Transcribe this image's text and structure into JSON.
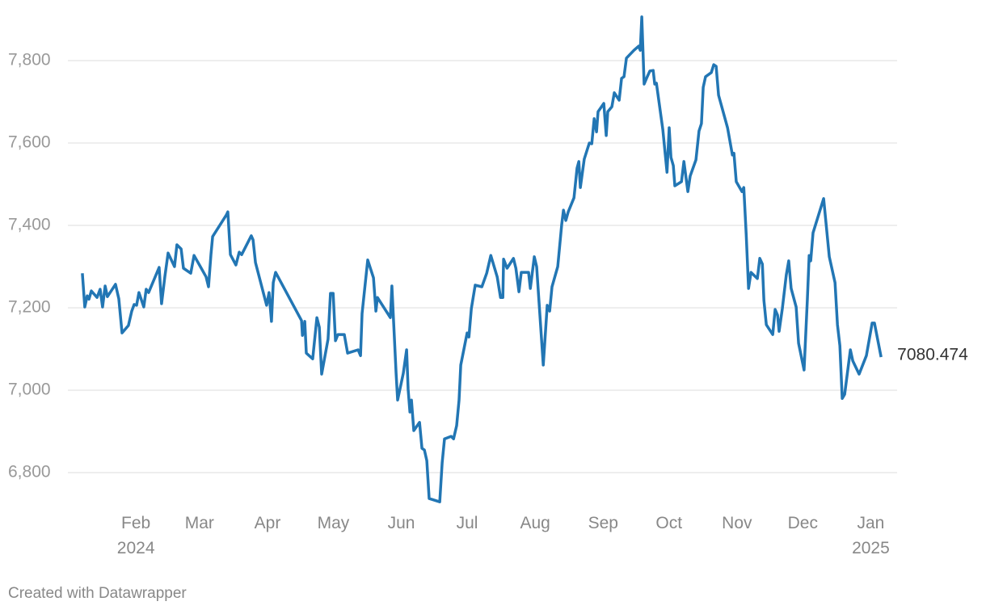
{
  "chart_data": {
    "type": "line",
    "credit": "Created with Datawrapper",
    "xlim": [
      0,
      378
    ],
    "ylim": [
      6720,
      7920
    ],
    "grid": true,
    "xticks": [
      {
        "value": 31,
        "label": "Feb\n2024"
      },
      {
        "value": 60,
        "label": "Mar"
      },
      {
        "value": 91,
        "label": "Apr"
      },
      {
        "value": 121,
        "label": "May"
      },
      {
        "value": 152,
        "label": "Jun"
      },
      {
        "value": 182,
        "label": "Jul"
      },
      {
        "value": 213,
        "label": "Aug"
      },
      {
        "value": 244,
        "label": "Sep"
      },
      {
        "value": 274,
        "label": "Oct"
      },
      {
        "value": 305,
        "label": "Nov"
      },
      {
        "value": 335,
        "label": "Dec"
      },
      {
        "value": 366,
        "label": "Jan\n2025"
      }
    ],
    "yticks": [
      {
        "value": 6800,
        "label": "6,800"
      },
      {
        "value": 7000,
        "label": "7,000"
      },
      {
        "value": 7200,
        "label": "7,200"
      },
      {
        "value": 7400,
        "label": "7,400"
      },
      {
        "value": 7600,
        "label": "7,600"
      },
      {
        "value": 7800,
        "label": "7,800"
      }
    ],
    "color": "#2276b4",
    "x": [
      6.6,
      7.7,
      8.8,
      9.6,
      10.7,
      13.3,
      14.7,
      15.8,
      17,
      18,
      21.7,
      23.2,
      24.7,
      27.6,
      29.1,
      30.2,
      31.3,
      32.4,
      34.6,
      35.7,
      36.8,
      41.6,
      42.7,
      44.2,
      45.7,
      48.6,
      49.7,
      51.6,
      52.7,
      56,
      57.5,
      60.4,
      63,
      64.1,
      65.2,
      66,
      72.2,
      72.9,
      74.1,
      76.6,
      78.1,
      79.2,
      83.6,
      84.4,
      85.5,
      90.6,
      91.7,
      92.8,
      93.6,
      94.7,
      106.5,
      106.9,
      108,
      108.7,
      111.6,
      113.5,
      114.6,
      115.7,
      118.6,
      119.7,
      120.9,
      122,
      123.1,
      126,
      127.5,
      132.3,
      133.4,
      134.1,
      136.7,
      139.3,
      140.4,
      141.1,
      147,
      147.7,
      148.5,
      149.6,
      150.3,
      152.9,
      154.4,
      155.1,
      155.9,
      156.6,
      157.7,
      160.3,
      161.4,
      162.5,
      163.6,
      164.7,
      169.5,
      170.6,
      171.7,
      174.7,
      175.8,
      177.2,
      178.3,
      179.1,
      182,
      182.8,
      183.9,
      185.7,
      188.7,
      190.9,
      192.8,
      195.7,
      197.2,
      198.3,
      198.6,
      200.2,
      203.1,
      204.2,
      205.6,
      206.7,
      210,
      210.8,
      212.6,
      213.7,
      216.7,
      218.5,
      219.6,
      220.7,
      223.3,
      225.1,
      225.9,
      227,
      228.1,
      230.7,
      232.1,
      232.9,
      233.6,
      235.4,
      237.7,
      238.8,
      239.9,
      241,
      241.7,
      244.3,
      245.4,
      246.1,
      248,
      249.1,
      251.3,
      252.4,
      253.5,
      254.6,
      258,
      260.2,
      260.9,
      261.6,
      262.7,
      263.8,
      265.3,
      266.8,
      267.5,
      268.3,
      271.2,
      273.1,
      274.1,
      274.9,
      276,
      276.7,
      279.7,
      280.8,
      282.6,
      283.7,
      286.3,
      287.7,
      288.8,
      289.6,
      290.7,
      293.3,
      294.4,
      295.5,
      296.6,
      300.7,
      302.9,
      303.6,
      304.7,
      307.3,
      308.1,
      309.2,
      310.3,
      311.4,
      314.3,
      315.4,
      316.6,
      317.3,
      318.4,
      321.3,
      322.4,
      323.5,
      324.2,
      325.7,
      327.5,
      328.6,
      329.7,
      332,
      333.1,
      335.6,
      337.1,
      337.9,
      338.6,
      339.7,
      344.5,
      347.1,
      349.7,
      350.8,
      351.9,
      353,
      354.1,
      356.7,
      357.8,
      360.7,
      364,
      366.6,
      367.7,
      370.7
    ],
    "values": [
      7284,
      7202,
      7229,
      7221,
      7241,
      7225,
      7245,
      7202,
      7253,
      7227,
      7257,
      7222,
      7139,
      7157,
      7192,
      7208,
      7206,
      7237,
      7202,
      7245,
      7237,
      7298,
      7210,
      7276,
      7333,
      7300,
      7353,
      7343,
      7296,
      7284,
      7327,
      7300,
      7275,
      7251,
      7329,
      7373,
      7425,
      7433,
      7329,
      7304,
      7335,
      7329,
      7375,
      7365,
      7310,
      7206,
      7237,
      7167,
      7261,
      7286,
      7169,
      7133,
      7167,
      7090,
      7076,
      7176,
      7153,
      7039,
      7124,
      7235,
      7235,
      7120,
      7135,
      7135,
      7090,
      7098,
      7084,
      7186,
      7316,
      7273,
      7192,
      7225,
      7176,
      7253,
      7163,
      7041,
      6976,
      7041,
      7098,
      7002,
      6947,
      6976,
      6902,
      6922,
      6859,
      6855,
      6829,
      6737,
      6729,
      6824,
      6882,
      6888,
      6882,
      6914,
      6976,
      7061,
      7139,
      7129,
      7198,
      7255,
      7251,
      7284,
      7327,
      7275,
      7225,
      7225,
      7318,
      7296,
      7320,
      7296,
      7239,
      7286,
      7286,
      7247,
      7324,
      7300,
      7061,
      7206,
      7192,
      7251,
      7300,
      7402,
      7437,
      7412,
      7433,
      7467,
      7539,
      7555,
      7492,
      7561,
      7600,
      7598,
      7659,
      7627,
      7676,
      7696,
      7618,
      7676,
      7688,
      7722,
      7704,
      7757,
      7761,
      7806,
      7825,
      7835,
      7825,
      7906,
      7743,
      7757,
      7775,
      7776,
      7743,
      7745,
      7633,
      7529,
      7637,
      7565,
      7545,
      7496,
      7506,
      7555,
      7482,
      7520,
      7559,
      7629,
      7647,
      7735,
      7761,
      7771,
      7790,
      7786,
      7716,
      7637,
      7571,
      7575,
      7506,
      7482,
      7492,
      7378,
      7247,
      7286,
      7271,
      7320,
      7306,
      7218,
      7159,
      7135,
      7196,
      7182,
      7143,
      7198,
      7280,
      7314,
      7247,
      7202,
      7114,
      7049,
      7222,
      7327,
      7314,
      7382,
      7465,
      7324,
      7261,
      7159,
      7108,
      6980,
      6990,
      7098,
      7071,
      7039,
      7084,
      7163,
      7163,
      7080.474
    ]
  }
}
